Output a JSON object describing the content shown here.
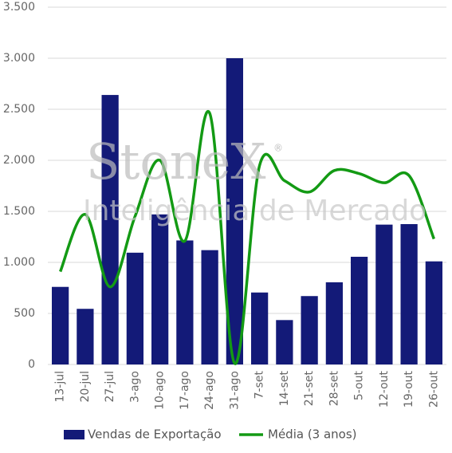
{
  "chart_data": {
    "type": "bar_line",
    "watermark": {
      "brand": "StoneX",
      "mark": "®",
      "tagline": "Inteligência de Mercado"
    },
    "categories": [
      "13-jul",
      "20-jul",
      "27-jul",
      "3-ago",
      "10-ago",
      "17-ago",
      "24-ago",
      "31-ago",
      "7-set",
      "14-set",
      "21-set",
      "28-set",
      "5-out",
      "12-out",
      "19-out",
      "26-out"
    ],
    "series": [
      {
        "name": "Vendas de Exportação",
        "type": "bar",
        "color": "#131a78",
        "values": [
          760,
          545,
          2640,
          1095,
          1470,
          1215,
          1120,
          3000,
          705,
          435,
          670,
          805,
          1055,
          1370,
          1375,
          1010
        ]
      },
      {
        "name": "Média (3 anos)",
        "type": "line",
        "color": "#139a14",
        "values": [
          910,
          1470,
          760,
          1450,
          2000,
          1210,
          2460,
          10,
          1950,
          1800,
          1690,
          1900,
          1870,
          1780,
          1850,
          1230
        ]
      }
    ],
    "ylim": [
      0,
      3500
    ],
    "yticks": [
      0,
      500,
      {
        "value": 1000,
        "label": "1.000"
      },
      {
        "value": 1500,
        "label": "1.500"
      },
      {
        "value": 2000,
        "label": "2.000"
      },
      {
        "value": 2500,
        "label": "2.500"
      },
      {
        "value": 3000,
        "label": "3.000"
      },
      {
        "value": 3500,
        "label": "3.500"
      }
    ],
    "grid": true,
    "legend": "bottom"
  }
}
